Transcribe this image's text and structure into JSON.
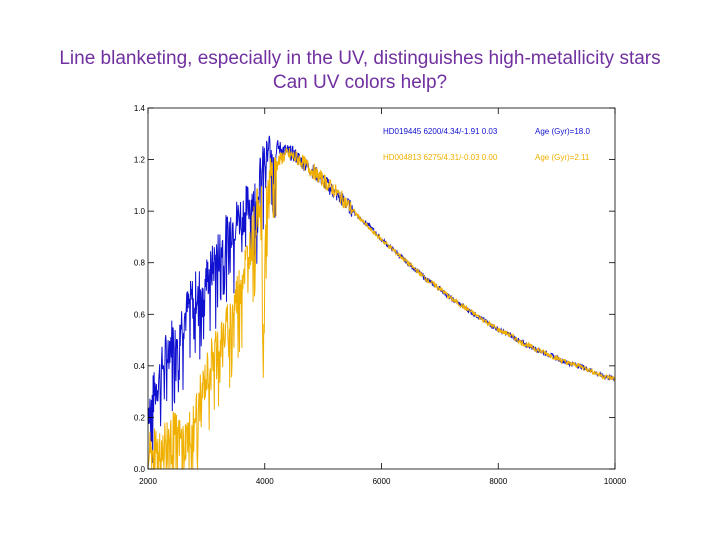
{
  "slide": {
    "title_line1": "Line blanketing, especially in the UV, distinguishes high-metallicity stars",
    "title_line2": "Can UV colors help?"
  },
  "colors": {
    "title": "#7030a0",
    "metal_poor": "#1010d0",
    "metal_rich": "#f0b000",
    "axis": "#000000"
  },
  "chart_data": {
    "type": "line",
    "title": "",
    "xlabel": "",
    "ylabel": "",
    "xlim": [
      2000,
      10000
    ],
    "ylim": [
      0.0,
      1.4
    ],
    "x_ticks": [
      2000,
      4000,
      6000,
      8000,
      10000
    ],
    "y_ticks": [
      0.0,
      0.2,
      0.4,
      0.6,
      0.8,
      1.0,
      1.2,
      1.4
    ],
    "legend_position": "top-right",
    "series": [
      {
        "name": "HD019445 6200/4.34/-1.91 0.03",
        "note": "Age (Gyr)=18.0",
        "color": "#1010d0",
        "x": [
          2000,
          2100,
          2200,
          2300,
          2400,
          2500,
          2600,
          2700,
          2800,
          2900,
          3000,
          3100,
          3200,
          3300,
          3400,
          3500,
          3600,
          3700,
          3800,
          3850,
          3900,
          3950,
          4000,
          4050,
          4100,
          4150,
          4200,
          4300,
          4400,
          4500,
          4600,
          4700,
          4800,
          5000,
          5200,
          5400,
          5600,
          5800,
          6000,
          6200,
          6400,
          6600,
          6800,
          7000,
          7200,
          7400,
          7600,
          7800,
          8000,
          8200,
          8400,
          8600,
          8800,
          9000,
          9200,
          9400,
          9600,
          9800,
          10000
        ],
        "y": [
          0.24,
          0.29,
          0.36,
          0.44,
          0.5,
          0.55,
          0.58,
          0.63,
          0.68,
          0.7,
          0.74,
          0.78,
          0.84,
          0.88,
          0.94,
          0.96,
          0.99,
          1.02,
          1.05,
          1.07,
          1.11,
          1.15,
          1.2,
          1.22,
          1.24,
          1.25,
          1.25,
          1.24,
          1.23,
          1.22,
          1.2,
          1.18,
          1.16,
          1.12,
          1.07,
          1.03,
          0.98,
          0.94,
          0.89,
          0.85,
          0.81,
          0.77,
          0.73,
          0.7,
          0.66,
          0.63,
          0.6,
          0.57,
          0.54,
          0.52,
          0.49,
          0.47,
          0.45,
          0.43,
          0.41,
          0.4,
          0.38,
          0.36,
          0.35
        ]
      },
      {
        "name": "HD004813 6275/4.31/-0.03 0.00",
        "note": "Age (Gyr)=2.11",
        "color": "#f0b000",
        "x": [
          2000,
          2100,
          2200,
          2300,
          2400,
          2500,
          2600,
          2700,
          2800,
          2900,
          3000,
          3100,
          3200,
          3300,
          3400,
          3500,
          3600,
          3700,
          3800,
          3850,
          3900,
          3950,
          3970,
          4000,
          4050,
          4100,
          4150,
          4200,
          4300,
          4400,
          4500,
          4600,
          4700,
          4800,
          5000,
          5200,
          5400,
          5600,
          5800,
          6000,
          6200,
          6400,
          6600,
          6800,
          7000,
          7200,
          7400,
          7600,
          7800,
          8000,
          8200,
          8400,
          8600,
          8800,
          9000,
          9200,
          9400,
          9600,
          9800,
          10000
        ],
        "y": [
          0.05,
          0.07,
          0.1,
          0.12,
          0.14,
          0.13,
          0.1,
          0.14,
          0.2,
          0.28,
          0.36,
          0.44,
          0.5,
          0.52,
          0.58,
          0.66,
          0.74,
          0.82,
          0.92,
          0.98,
          1.04,
          1.06,
          0.3,
          0.9,
          1.1,
          1.12,
          1.16,
          1.18,
          1.21,
          1.22,
          1.21,
          1.2,
          1.18,
          1.16,
          1.12,
          1.08,
          1.03,
          0.98,
          0.93,
          0.89,
          0.85,
          0.81,
          0.77,
          0.73,
          0.7,
          0.66,
          0.63,
          0.6,
          0.57,
          0.54,
          0.52,
          0.49,
          0.47,
          0.45,
          0.43,
          0.41,
          0.4,
          0.38,
          0.36,
          0.35
        ]
      }
    ]
  }
}
